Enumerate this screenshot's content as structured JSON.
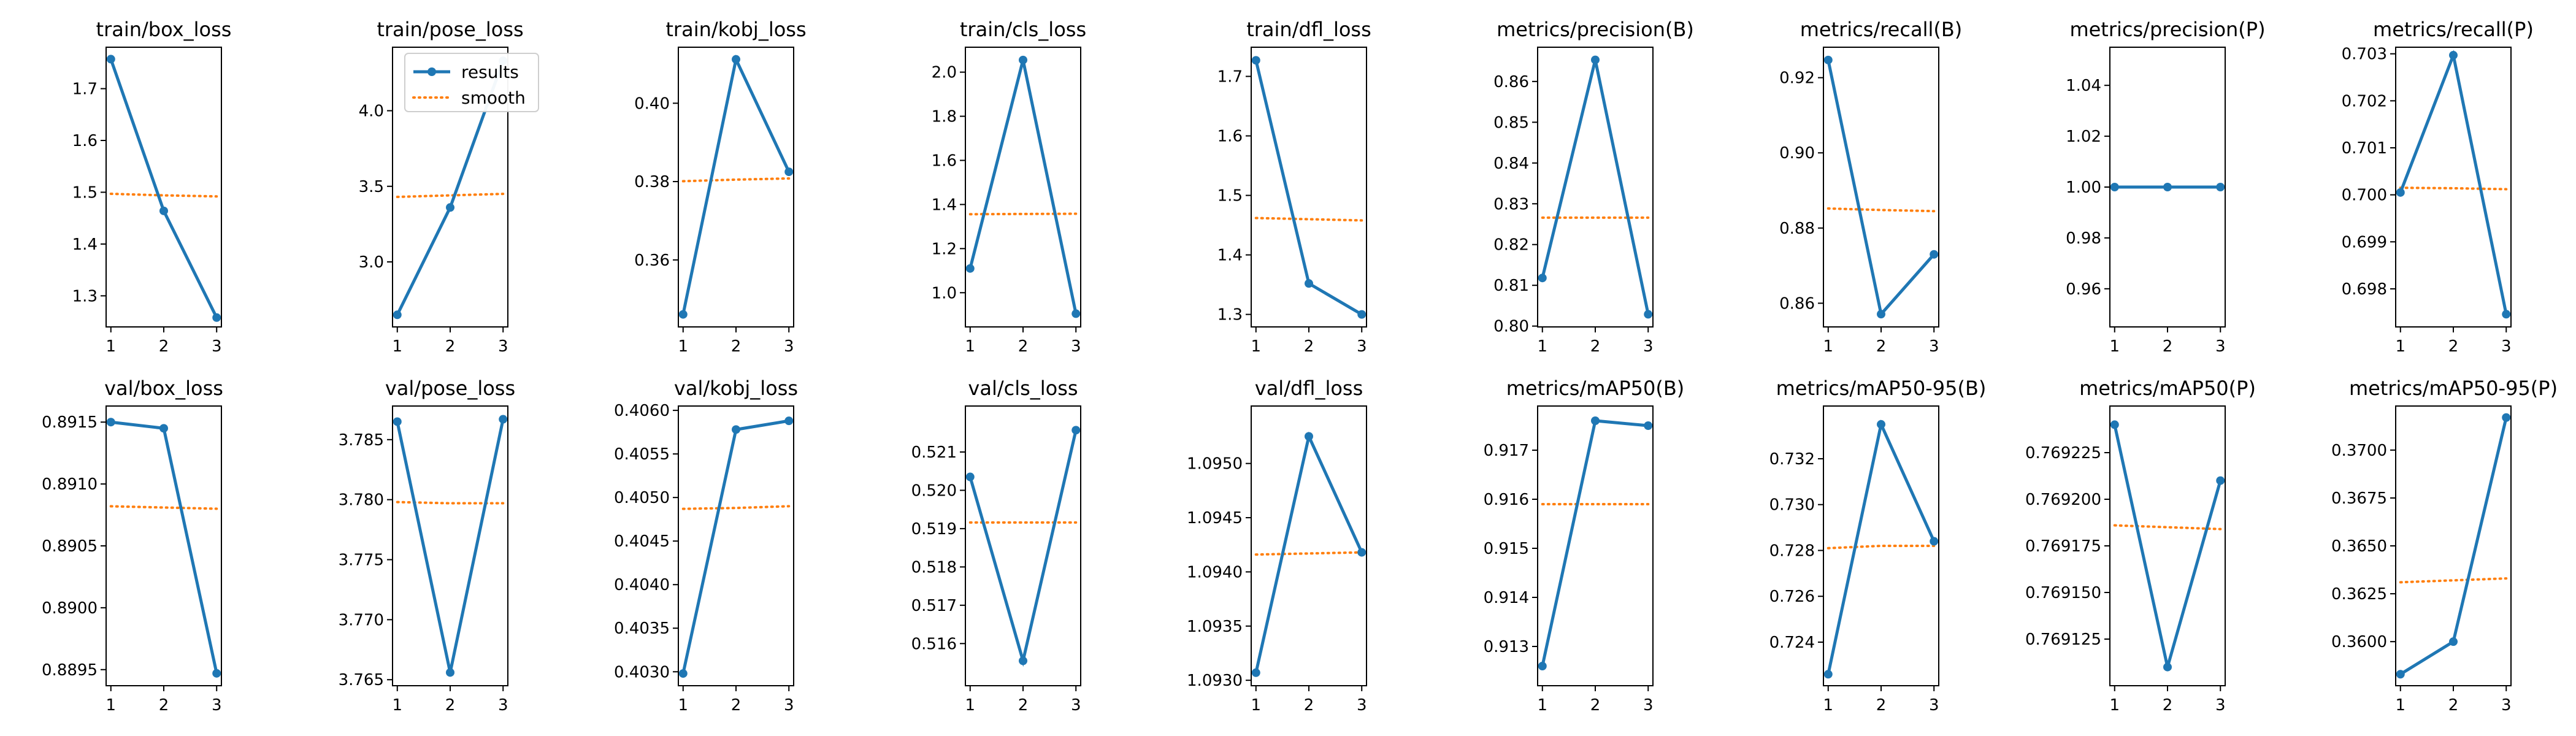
{
  "colors": {
    "results": "#1f77b4",
    "smooth": "#ff7f0e"
  },
  "legend": {
    "items": [
      "results",
      "smooth"
    ],
    "location": "top-right",
    "panel_index": 1
  },
  "chart_data": [
    {
      "type": "line",
      "title": "train/box_loss",
      "x": [
        1,
        2,
        3
      ],
      "ylim": [
        1.24,
        1.78
      ],
      "series": [
        {
          "name": "results",
          "values": [
            1.757,
            1.464,
            1.258
          ]
        },
        {
          "name": "smooth",
          "values": [
            1.497,
            1.494,
            1.492
          ]
        }
      ],
      "xticks": [
        "1",
        "2",
        "3"
      ],
      "ytick_values": [
        1.3,
        1.4,
        1.5,
        1.6,
        1.7
      ],
      "yticks": [
        "1.3",
        "1.4",
        "1.5",
        "1.6",
        "1.7"
      ]
    },
    {
      "type": "line",
      "title": "train/pose_loss",
      "x": [
        1,
        2,
        3
      ],
      "ylim": [
        2.57,
        4.42
      ],
      "series": [
        {
          "name": "results",
          "values": [
            2.65,
            3.36,
            4.33
          ]
        },
        {
          "name": "smooth",
          "values": [
            3.43,
            3.44,
            3.45
          ]
        }
      ],
      "xticks": [
        "1",
        "2",
        "3"
      ],
      "ytick_values": [
        3.0,
        3.5,
        4.0
      ],
      "yticks": [
        "3.0",
        "3.5",
        "4.0"
      ]
    },
    {
      "type": "line",
      "title": "train/kobj_loss",
      "x": [
        1,
        2,
        3
      ],
      "ylim": [
        0.3429,
        0.4143
      ],
      "series": [
        {
          "name": "results",
          "values": [
            0.3461,
            0.4112,
            0.3825
          ]
        },
        {
          "name": "smooth",
          "values": [
            0.3801,
            0.3805,
            0.3808
          ]
        }
      ],
      "xticks": [
        "1",
        "2",
        "3"
      ],
      "ytick_values": [
        0.36,
        0.38,
        0.4
      ],
      "yticks": [
        "0.36",
        "0.38",
        "0.40"
      ]
    },
    {
      "type": "line",
      "title": "train/cls_loss",
      "x": [
        1,
        2,
        3
      ],
      "ylim": [
        0.845,
        2.113
      ],
      "series": [
        {
          "name": "results",
          "values": [
            1.11,
            2.055,
            0.905
          ]
        },
        {
          "name": "smooth",
          "values": [
            1.356,
            1.357,
            1.358
          ]
        }
      ],
      "xticks": [
        "1",
        "2",
        "3"
      ],
      "ytick_values": [
        1.0,
        1.2,
        1.4,
        1.6,
        1.8,
        2.0
      ],
      "yticks": [
        "1.0",
        "1.2",
        "1.4",
        "1.6",
        "1.8",
        "2.0"
      ]
    },
    {
      "type": "line",
      "title": "train/dfl_loss",
      "x": [
        1,
        2,
        3
      ],
      "ylim": [
        1.279,
        1.749
      ],
      "series": [
        {
          "name": "results",
          "values": [
            1.727,
            1.352,
            1.3
          ]
        },
        {
          "name": "smooth",
          "values": [
            1.462,
            1.46,
            1.458
          ]
        }
      ],
      "xticks": [
        "1",
        "2",
        "3"
      ],
      "ytick_values": [
        1.3,
        1.4,
        1.5,
        1.6,
        1.7
      ],
      "yticks": [
        "1.3",
        "1.4",
        "1.5",
        "1.6",
        "1.7"
      ]
    },
    {
      "type": "line",
      "title": "metrics/precision(B)",
      "x": [
        1,
        2,
        3
      ],
      "ylim": [
        0.7998,
        0.8684
      ],
      "series": [
        {
          "name": "results",
          "values": [
            0.8118,
            0.8653,
            0.8029
          ]
        },
        {
          "name": "smooth",
          "values": [
            0.8266,
            0.8266,
            0.8266
          ]
        }
      ],
      "xticks": [
        "1",
        "2",
        "3"
      ],
      "ytick_values": [
        0.8,
        0.81,
        0.82,
        0.83,
        0.84,
        0.85,
        0.86
      ],
      "yticks": [
        "0.80",
        "0.81",
        "0.82",
        "0.83",
        "0.84",
        "0.85",
        "0.86"
      ]
    },
    {
      "type": "line",
      "title": "metrics/recall(B)",
      "x": [
        1,
        2,
        3
      ],
      "ylim": [
        0.8537,
        0.9281
      ],
      "series": [
        {
          "name": "results",
          "values": [
            0.9247,
            0.8571,
            0.873
          ]
        },
        {
          "name": "smooth",
          "values": [
            0.8852,
            0.8848,
            0.8845
          ]
        }
      ],
      "xticks": [
        "1",
        "2",
        "3"
      ],
      "ytick_values": [
        0.86,
        0.88,
        0.9,
        0.92
      ],
      "yticks": [
        "0.86",
        "0.88",
        "0.90",
        "0.92"
      ]
    },
    {
      "type": "line",
      "title": "metrics/precision(P)",
      "x": [
        1,
        2,
        3
      ],
      "ylim": [
        0.945,
        1.055
      ],
      "series": [
        {
          "name": "results",
          "values": [
            1.0,
            1.0,
            1.0
          ]
        },
        {
          "name": "smooth",
          "values": [
            1.0,
            1.0,
            1.0
          ]
        }
      ],
      "xticks": [
        "1",
        "2",
        "3"
      ],
      "ytick_values": [
        0.96,
        0.98,
        1.0,
        1.02,
        1.04
      ],
      "yticks": [
        "0.96",
        "0.98",
        "1.00",
        "1.02",
        "1.04"
      ]
    },
    {
      "type": "line",
      "title": "metrics/recall(P)",
      "x": [
        1,
        2,
        3
      ],
      "ylim": [
        0.69719,
        0.70314
      ],
      "series": [
        {
          "name": "results",
          "values": [
            0.70005,
            0.70297,
            0.69746
          ]
        },
        {
          "name": "smooth",
          "values": [
            0.70015,
            0.70014,
            0.70012
          ]
        }
      ],
      "xticks": [
        "1",
        "2",
        "3"
      ],
      "ytick_values": [
        0.698,
        0.699,
        0.7,
        0.701,
        0.702,
        0.703
      ],
      "yticks": [
        "0.698",
        "0.699",
        "0.700",
        "0.701",
        "0.702",
        "0.703"
      ]
    },
    {
      "type": "line",
      "title": "val/box_loss",
      "x": [
        1,
        2,
        3
      ],
      "ylim": [
        0.88937,
        0.89163
      ],
      "series": [
        {
          "name": "results",
          "values": [
            0.8915,
            0.89145,
            0.88947
          ]
        },
        {
          "name": "smooth",
          "values": [
            0.89082,
            0.89081,
            0.8908
          ]
        }
      ],
      "xticks": [
        "1",
        "2",
        "3"
      ],
      "ytick_values": [
        0.8895,
        0.89,
        0.8905,
        0.891,
        0.8915
      ],
      "yticks": [
        "0.8895",
        "0.8900",
        "0.8905",
        "0.8910",
        "0.8915"
      ]
    },
    {
      "type": "line",
      "title": "val/pose_loss",
      "x": [
        1,
        2,
        3
      ],
      "ylim": [
        3.7645,
        3.7878
      ],
      "series": [
        {
          "name": "results",
          "values": [
            3.7865,
            3.7656,
            3.7867
          ]
        },
        {
          "name": "smooth",
          "values": [
            3.7798,
            3.7797,
            3.7797
          ]
        }
      ],
      "xticks": [
        "1",
        "2",
        "3"
      ],
      "ytick_values": [
        3.765,
        3.77,
        3.775,
        3.78,
        3.785
      ],
      "yticks": [
        "3.765",
        "3.770",
        "3.775",
        "3.780",
        "3.785"
      ]
    },
    {
      "type": "line",
      "title": "val/kobj_loss",
      "x": [
        1,
        2,
        3
      ],
      "ylim": [
        0.40284,
        0.40605
      ],
      "series": [
        {
          "name": "results",
          "values": [
            0.40298,
            0.40578,
            0.40588
          ]
        },
        {
          "name": "smooth",
          "values": [
            0.40487,
            0.40488,
            0.4049
          ]
        }
      ],
      "xticks": [
        "1",
        "2",
        "3"
      ],
      "ytick_values": [
        0.403,
        0.4035,
        0.404,
        0.4045,
        0.405,
        0.4055,
        0.406
      ],
      "yticks": [
        "0.4030",
        "0.4035",
        "0.4040",
        "0.4045",
        "0.4050",
        "0.4055",
        "0.4060"
      ]
    },
    {
      "type": "line",
      "title": "val/cls_loss",
      "x": [
        1,
        2,
        3
      ],
      "ylim": [
        0.5149,
        0.5222
      ],
      "series": [
        {
          "name": "results",
          "values": [
            0.52035,
            0.51555,
            0.52157
          ]
        },
        {
          "name": "smooth",
          "values": [
            0.51916,
            0.51916,
            0.51916
          ]
        }
      ],
      "xticks": [
        "1",
        "2",
        "3"
      ],
      "ytick_values": [
        0.516,
        0.517,
        0.518,
        0.519,
        0.52,
        0.521
      ],
      "yticks": [
        "0.516",
        "0.517",
        "0.518",
        "0.519",
        "0.520",
        "0.521"
      ]
    },
    {
      "type": "line",
      "title": "val/dfl_loss",
      "x": [
        1,
        2,
        3
      ],
      "ylim": [
        1.09295,
        1.09553
      ],
      "series": [
        {
          "name": "results",
          "values": [
            1.09307,
            1.09525,
            1.09418
          ]
        },
        {
          "name": "smooth",
          "values": [
            1.09416,
            1.09417,
            1.09418
          ]
        }
      ],
      "xticks": [
        "1",
        "2",
        "3"
      ],
      "ytick_values": [
        1.093,
        1.0935,
        1.094,
        1.0945,
        1.095
      ],
      "yticks": [
        "1.0930",
        "1.0935",
        "1.0940",
        "1.0945",
        "1.0950"
      ]
    },
    {
      "type": "line",
      "title": "metrics/mAP50(B)",
      "x": [
        1,
        2,
        3
      ],
      "ylim": [
        0.9122,
        0.9179
      ],
      "series": [
        {
          "name": "results",
          "values": [
            0.9126,
            0.9176,
            0.9175
          ]
        },
        {
          "name": "smooth",
          "values": [
            0.9159,
            0.9159,
            0.9159
          ]
        }
      ],
      "xticks": [
        "1",
        "2",
        "3"
      ],
      "ytick_values": [
        0.913,
        0.914,
        0.915,
        0.916,
        0.917
      ],
      "yticks": [
        "0.913",
        "0.914",
        "0.915",
        "0.916",
        "0.917"
      ]
    },
    {
      "type": "line",
      "title": "metrics/mAP50-95(B)",
      "x": [
        1,
        2,
        3
      ],
      "ylim": [
        0.7221,
        0.7343
      ],
      "series": [
        {
          "name": "results",
          "values": [
            0.7226,
            0.7335,
            0.7284
          ]
        },
        {
          "name": "smooth",
          "values": [
            0.7281,
            0.7282,
            0.7282
          ]
        }
      ],
      "xticks": [
        "1",
        "2",
        "3"
      ],
      "ytick_values": [
        0.724,
        0.726,
        0.728,
        0.73,
        0.732
      ],
      "yticks": [
        "0.724",
        "0.726",
        "0.728",
        "0.730",
        "0.732"
      ]
    },
    {
      "type": "line",
      "title": "metrics/mAP50(P)",
      "x": [
        1,
        2,
        3
      ],
      "ylim": [
        0.7691,
        0.76925
      ],
      "series": [
        {
          "name": "results",
          "values": [
            0.76924,
            0.76911,
            0.76921
          ]
        },
        {
          "name": "smooth",
          "values": [
            0.769186,
            0.769185,
            0.769184
          ]
        }
      ],
      "xticks": [
        "1",
        "2",
        "3"
      ],
      "ytick_values": [
        0.769125,
        0.76915,
        0.769175,
        0.7692,
        0.769225
      ],
      "yticks": [
        "0.769125",
        "0.769150",
        "0.769175",
        "0.769200",
        "0.769225"
      ]
    },
    {
      "type": "line",
      "title": "metrics/mAP50-95(P)",
      "x": [
        1,
        2,
        3
      ],
      "ylim": [
        0.3577,
        0.3723
      ],
      "series": [
        {
          "name": "results",
          "values": [
            0.3583,
            0.36,
            0.3717
          ]
        },
        {
          "name": "smooth",
          "values": [
            0.3631,
            0.3632,
            0.3633
          ]
        }
      ],
      "xticks": [
        "1",
        "2",
        "3"
      ],
      "ytick_values": [
        0.36,
        0.3625,
        0.365,
        0.3675,
        0.37
      ],
      "yticks": [
        "0.3600",
        "0.3625",
        "0.3650",
        "0.3675",
        "0.3700"
      ]
    }
  ]
}
